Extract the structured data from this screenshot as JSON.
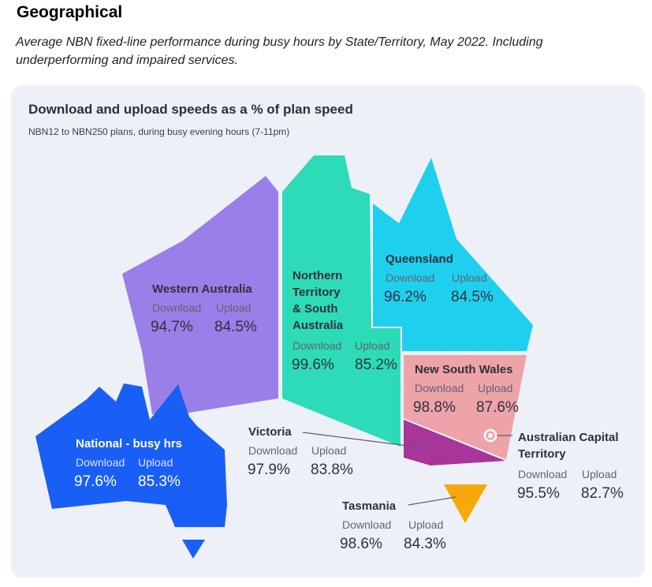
{
  "heading": "Geographical",
  "subheading": "Average NBN fixed-line performance during busy hours by State/Territory, May 2022. Including underperforming and impaired services.",
  "card": {
    "title": "Download and upload speeds as a % of plan speed",
    "subtitle": "NBN12 to NBN250 plans, during busy evening hours (7-11pm)"
  },
  "labels": {
    "download": "Download",
    "upload": "Upload"
  },
  "regions": {
    "wa": {
      "name": "Western Australia",
      "download": "94.7%",
      "upload": "84.5%",
      "color": "#9b7fe8"
    },
    "nt_sa": {
      "name_lines": [
        "Northern",
        "Territory",
        "& South",
        "Australia"
      ],
      "download": "99.6%",
      "upload": "85.2%",
      "color": "#2ddbb8"
    },
    "qld": {
      "name": "Queensland",
      "download": "96.2%",
      "upload": "84.5%",
      "color": "#1fd0ee"
    },
    "nsw": {
      "name": "New South Wales",
      "download": "98.8%",
      "upload": "87.6%",
      "color": "#eda3a8"
    },
    "vic": {
      "name": "Victoria",
      "download": "97.9%",
      "upload": "83.8%",
      "color": "#a8359a"
    },
    "act": {
      "name_lines": [
        "Australian Capital",
        "Territory"
      ],
      "download": "95.5%",
      "upload": "82.7%",
      "color": "#ffffff"
    },
    "tas": {
      "name": "Tasmania",
      "download": "98.6%",
      "upload": "84.3%",
      "color": "#f5a90d"
    },
    "national": {
      "name": "National - busy hrs",
      "download": "97.6%",
      "upload": "85.3%",
      "color": "#1a5ff5"
    }
  }
}
